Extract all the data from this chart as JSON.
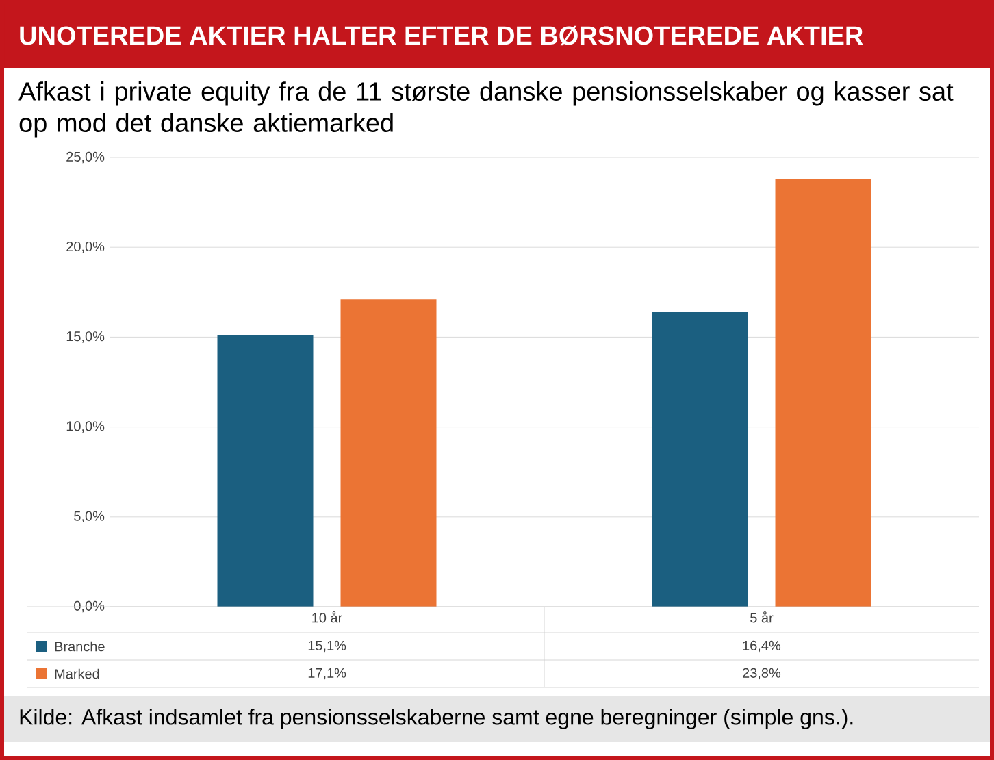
{
  "chart_data": {
    "type": "bar",
    "title": "UNOTEREDE AKTIER HALTER EFTER DE BØRSNOTEREDE AKTIER",
    "subtitle": "Afkast i private equity fra de 11 største danske pensionsselskaber og kasser sat op mod det danske aktiemarked",
    "categories": [
      "10 år",
      "5 år"
    ],
    "series": [
      {
        "name": "Branche",
        "color": "#1b5f80",
        "values": [
          15.1,
          16.4
        ],
        "value_labels": [
          "15,1%",
          "16,4%"
        ]
      },
      {
        "name": "Marked",
        "color": "#eb7434",
        "values": [
          17.1,
          23.8
        ],
        "value_labels": [
          "17,1%",
          "23,8%"
        ]
      }
    ],
    "ylim": [
      0,
      25
    ],
    "yticks": [
      {
        "value": 0,
        "label": "0,0%"
      },
      {
        "value": 5,
        "label": "5,0%"
      },
      {
        "value": 10,
        "label": "10,0%"
      },
      {
        "value": 15,
        "label": "15,0%"
      },
      {
        "value": 20,
        "label": "20,0%"
      },
      {
        "value": 25,
        "label": "25,0%"
      }
    ],
    "grid": "y",
    "legend": "bottom",
    "annotations": [
      "Kilde: Afkast indsamlet fra pensionsselskaberne samt egne beregninger (simple gns.)."
    ]
  }
}
